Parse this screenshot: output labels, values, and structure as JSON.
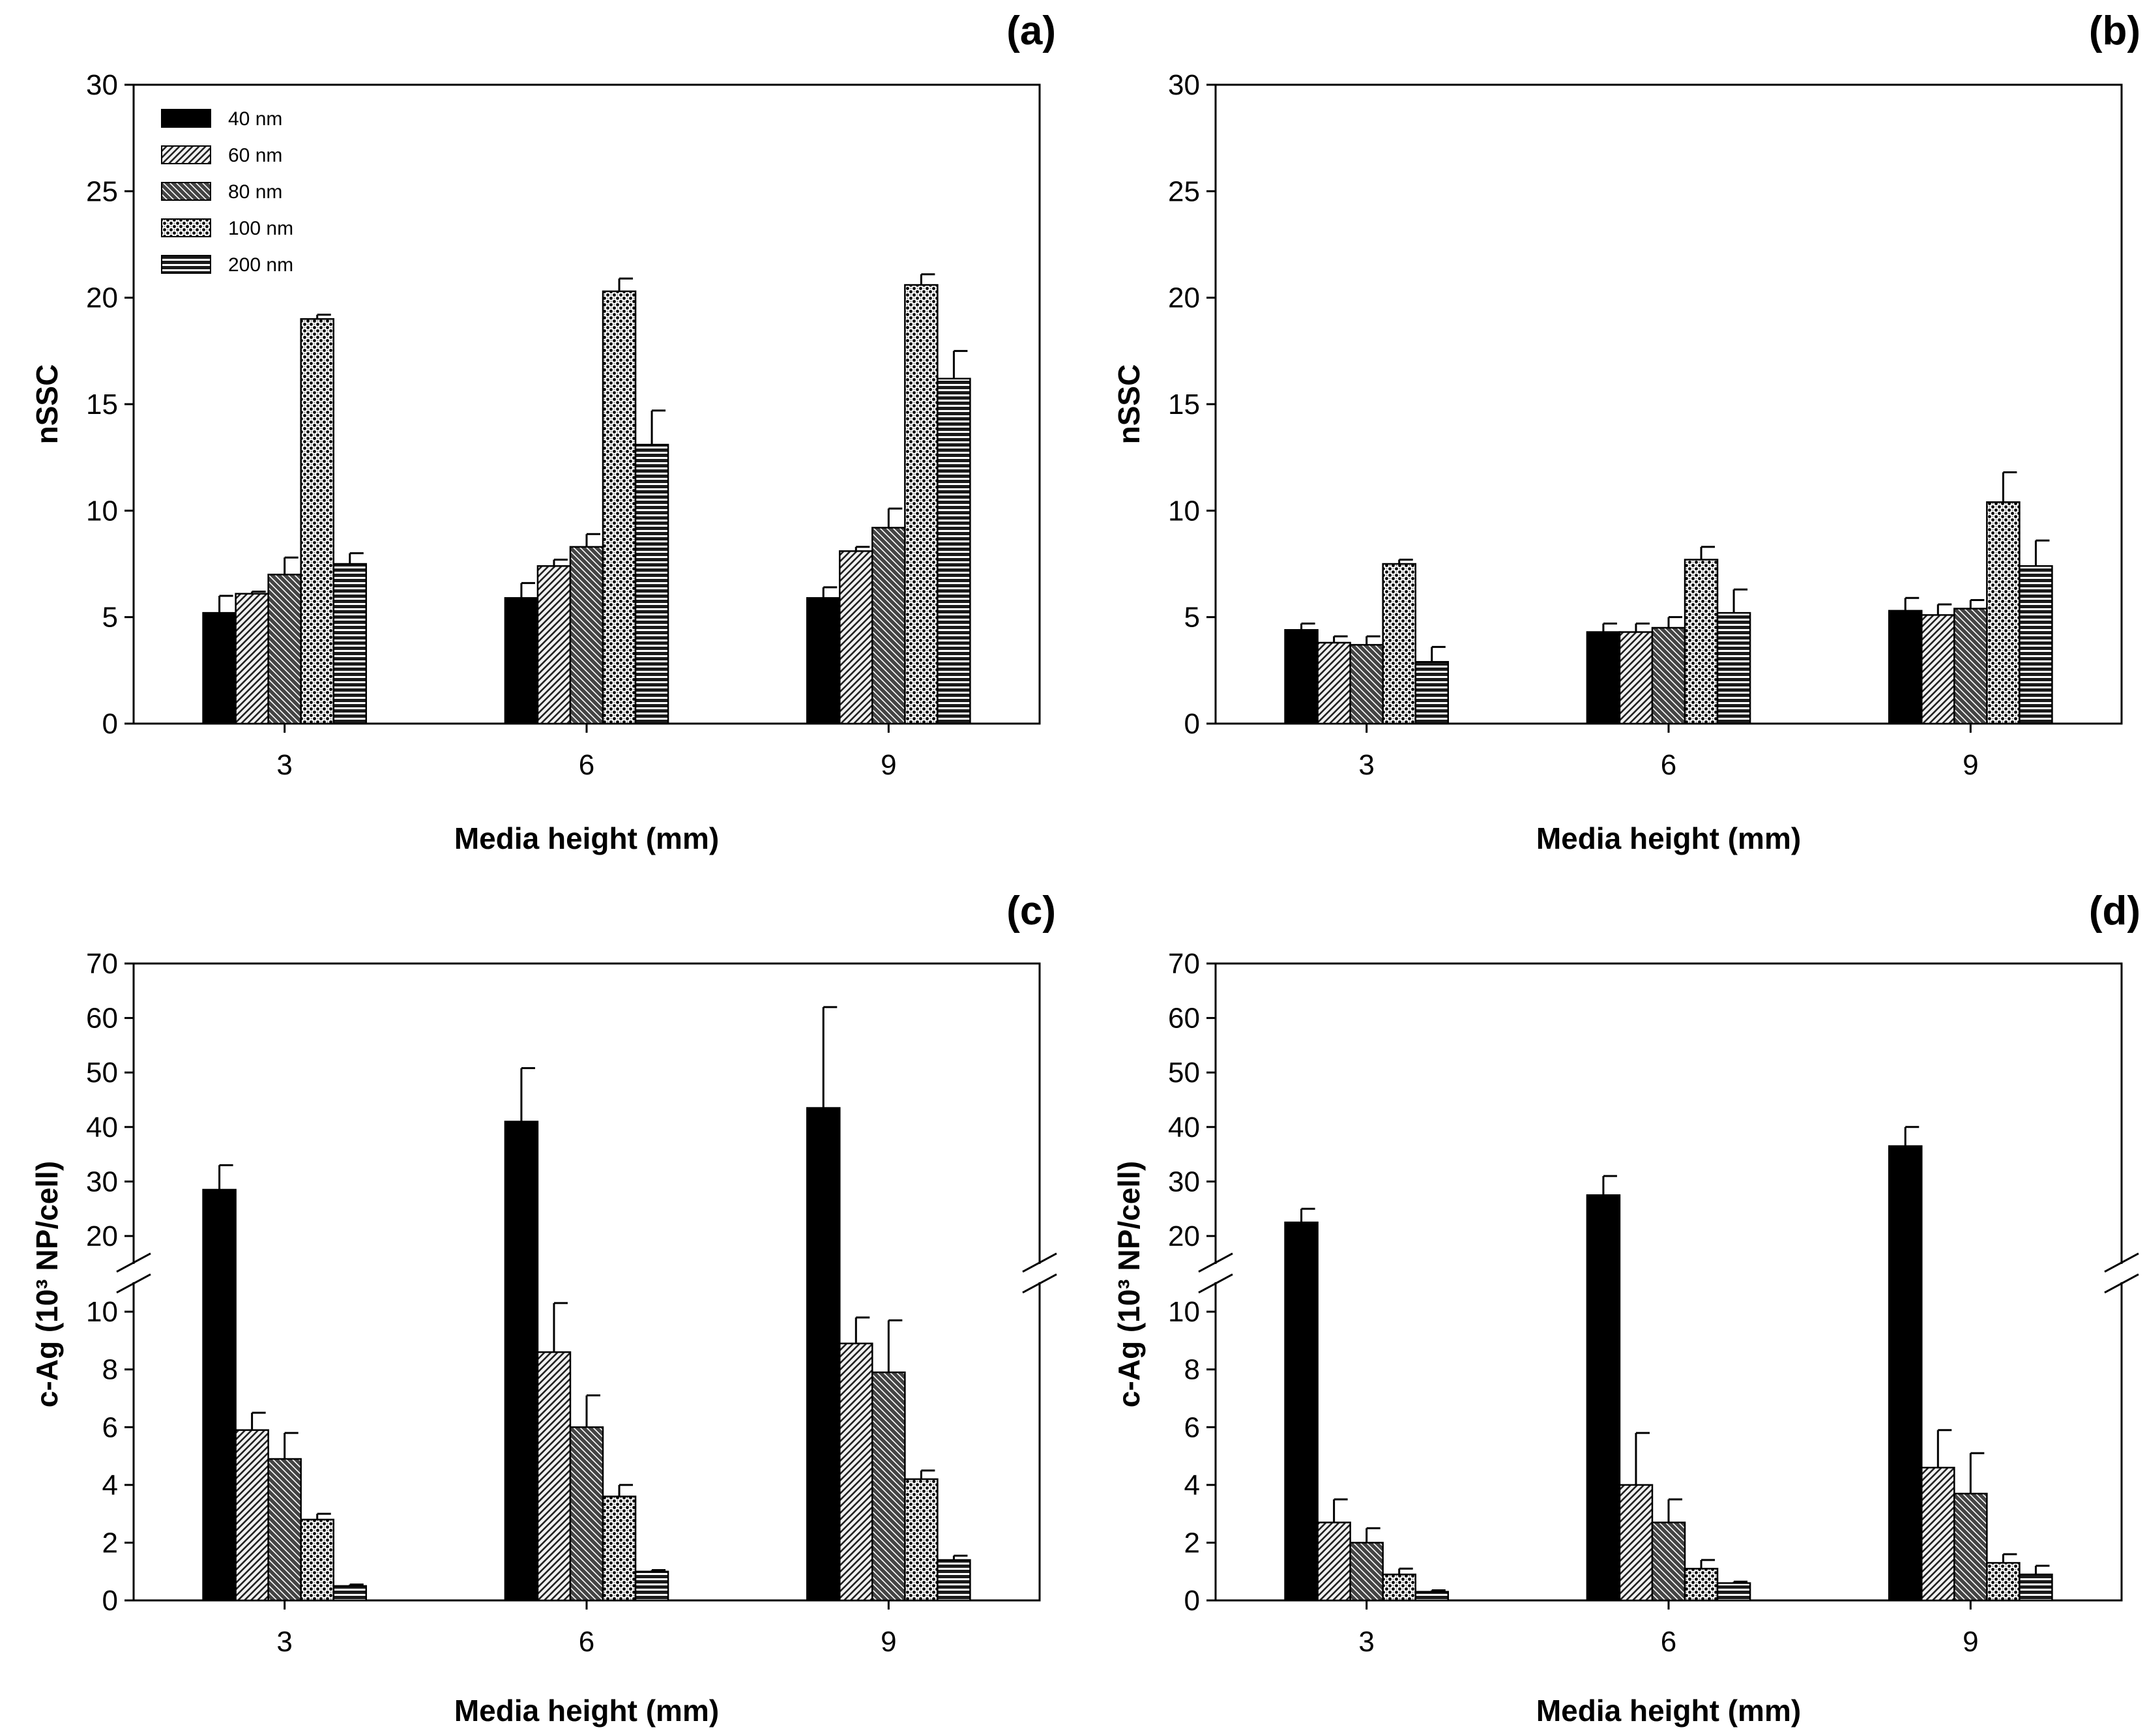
{
  "figure": {
    "series_names": [
      "40 nm",
      "60 nm",
      "80 nm",
      "100 nm",
      "200 nm"
    ],
    "legend_placement": "top-left inside panel (a)"
  },
  "chart_data": [
    {
      "id": "a",
      "panel_label": "(a)",
      "type": "bar",
      "xlabel": "Media height (mm)",
      "ylabel": "nSSC",
      "categories": [
        "3",
        "6",
        "9"
      ],
      "ylim": [
        0,
        30
      ],
      "yticks": [
        0,
        5,
        10,
        15,
        20,
        25,
        30
      ],
      "series": [
        {
          "name": "40 nm",
          "values": [
            5.2,
            5.9,
            5.9
          ],
          "errors": [
            0.8,
            0.7,
            0.5
          ]
        },
        {
          "name": "60 nm",
          "values": [
            6.1,
            7.4,
            8.1
          ],
          "errors": [
            0.1,
            0.3,
            0.2
          ]
        },
        {
          "name": "80 nm",
          "values": [
            7.0,
            8.3,
            9.2
          ],
          "errors": [
            0.8,
            0.6,
            0.9
          ]
        },
        {
          "name": "100 nm",
          "values": [
            19.0,
            20.3,
            20.6
          ],
          "errors": [
            0.2,
            0.6,
            0.5
          ]
        },
        {
          "name": "200 nm",
          "values": [
            7.5,
            13.1,
            16.2
          ],
          "errors": [
            0.5,
            1.6,
            1.3
          ]
        }
      ]
    },
    {
      "id": "b",
      "panel_label": "(b)",
      "type": "bar",
      "xlabel": "Media height (mm)",
      "ylabel": "nSSC",
      "categories": [
        "3",
        "6",
        "9"
      ],
      "ylim": [
        0,
        30
      ],
      "yticks": [
        0,
        5,
        10,
        15,
        20,
        25,
        30
      ],
      "series": [
        {
          "name": "40 nm",
          "values": [
            4.4,
            4.3,
            5.3
          ],
          "errors": [
            0.3,
            0.4,
            0.6
          ]
        },
        {
          "name": "60 nm",
          "values": [
            3.8,
            4.3,
            5.1
          ],
          "errors": [
            0.3,
            0.4,
            0.5
          ]
        },
        {
          "name": "80 nm",
          "values": [
            3.7,
            4.5,
            5.4
          ],
          "errors": [
            0.4,
            0.5,
            0.4
          ]
        },
        {
          "name": "100 nm",
          "values": [
            7.5,
            7.7,
            10.4
          ],
          "errors": [
            0.2,
            0.6,
            1.4
          ]
        },
        {
          "name": "200 nm",
          "values": [
            2.9,
            5.2,
            7.4
          ],
          "errors": [
            0.7,
            1.1,
            1.2
          ]
        }
      ]
    },
    {
      "id": "c",
      "panel_label": "(c)",
      "type": "bar",
      "xlabel": "Media height (mm)",
      "ylabel": "c-Ag (10³ NP/cell)",
      "categories": [
        "3",
        "6",
        "9"
      ],
      "axis_break": {
        "lower_range": [
          0,
          11
        ],
        "upper_range": [
          15,
          70
        ]
      },
      "yticks_lower": [
        0,
        2,
        4,
        6,
        8,
        10
      ],
      "yticks_upper": [
        20,
        30,
        40,
        50,
        60,
        70
      ],
      "series": [
        {
          "name": "40 nm",
          "values": [
            28.5,
            41.0,
            43.5
          ],
          "errors": [
            4.5,
            9.8,
            18.5
          ]
        },
        {
          "name": "60 nm",
          "values": [
            5.9,
            8.6,
            8.9
          ],
          "errors": [
            0.6,
            1.7,
            0.9
          ]
        },
        {
          "name": "80 nm",
          "values": [
            4.9,
            6.0,
            7.9
          ],
          "errors": [
            0.9,
            1.1,
            1.8
          ]
        },
        {
          "name": "100 nm",
          "values": [
            2.8,
            3.6,
            4.2
          ],
          "errors": [
            0.2,
            0.4,
            0.3
          ]
        },
        {
          "name": "200 nm",
          "values": [
            0.5,
            1.0,
            1.4
          ],
          "errors": [
            0.05,
            0.05,
            0.15
          ]
        }
      ]
    },
    {
      "id": "d",
      "panel_label": "(d)",
      "type": "bar",
      "xlabel": "Media height (mm)",
      "ylabel": "c-Ag (10³ NP/cell)",
      "categories": [
        "3",
        "6",
        "9"
      ],
      "axis_break": {
        "lower_range": [
          0,
          11
        ],
        "upper_range": [
          15,
          70
        ]
      },
      "yticks_lower": [
        0,
        2,
        4,
        6,
        8,
        10
      ],
      "yticks_upper": [
        20,
        30,
        40,
        50,
        60,
        70
      ],
      "series": [
        {
          "name": "40 nm",
          "values": [
            22.5,
            27.5,
            36.5
          ],
          "errors": [
            2.5,
            3.5,
            3.5
          ]
        },
        {
          "name": "60 nm",
          "values": [
            2.7,
            4.0,
            4.6
          ],
          "errors": [
            0.8,
            1.8,
            1.3
          ]
        },
        {
          "name": "80 nm",
          "values": [
            2.0,
            2.7,
            3.7
          ],
          "errors": [
            0.5,
            0.8,
            1.4
          ]
        },
        {
          "name": "100 nm",
          "values": [
            0.9,
            1.1,
            1.3
          ],
          "errors": [
            0.2,
            0.3,
            0.3
          ]
        },
        {
          "name": "200 nm",
          "values": [
            0.3,
            0.6,
            0.9
          ],
          "errors": [
            0.05,
            0.05,
            0.3
          ]
        }
      ]
    }
  ]
}
